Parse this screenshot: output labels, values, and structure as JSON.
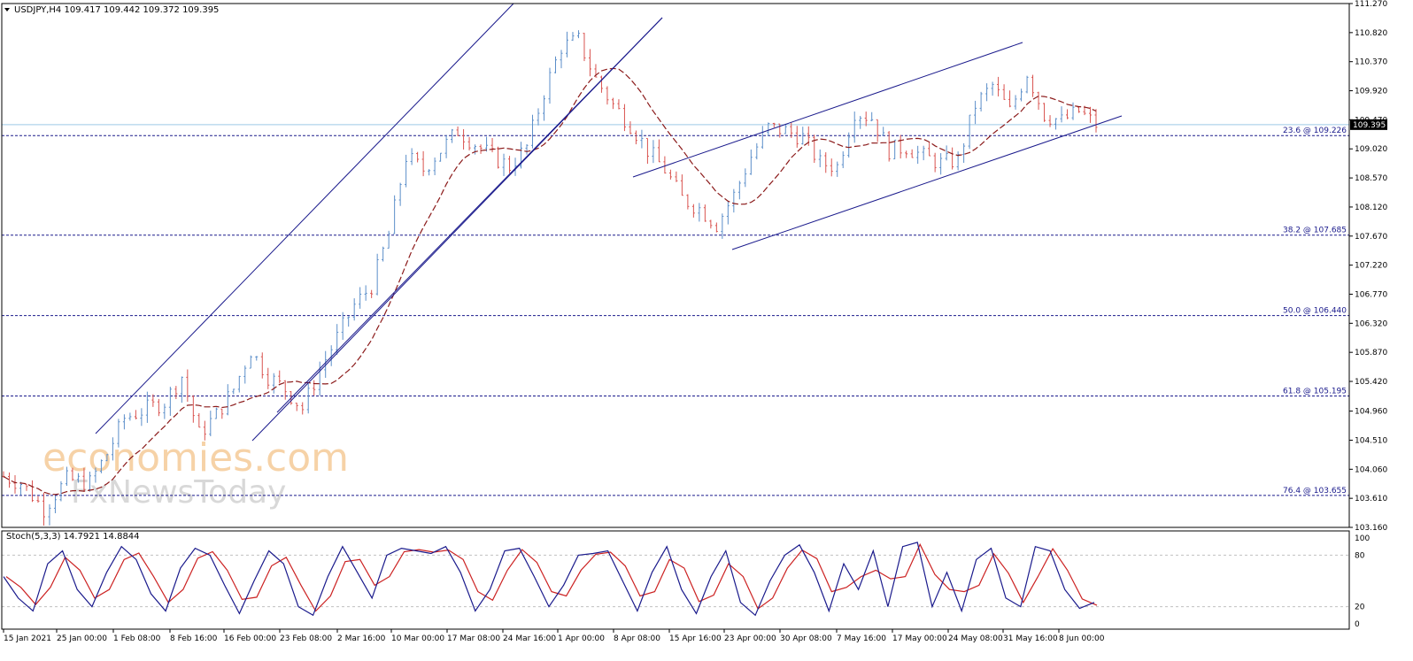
{
  "header": {
    "symbol_line": "USDJPY,H4  109.417 109.442 109.372 109.395",
    "stoch_line": "Stoch(5,3,3) 14.7921 14.8844"
  },
  "watermark": {
    "line1": "economies.com",
    "line2": "FxNewsToday"
  },
  "colors": {
    "bull": "#5b8ec9",
    "bear": "#d9534f",
    "ma": "#8b1a1a",
    "channel": "#1a1a8c",
    "fib": "#1a1a8c",
    "price_line": "#9ec9e8",
    "stoch_main": "#1a1a8c",
    "stoch_signal": "#cc2222",
    "grid": "#c0c0c0"
  },
  "chart_data": {
    "type": "candlestick",
    "symbol": "USDJPY",
    "timeframe": "H4",
    "ohlc": {
      "open": 109.417,
      "high": 109.442,
      "low": 109.372,
      "close": 109.395
    },
    "current_price": 109.395,
    "ylim": [
      103.16,
      111.27
    ],
    "y_ticks": [
      "111.270",
      "110.820",
      "110.370",
      "109.920",
      "109.470",
      "109.020",
      "108.570",
      "108.120",
      "107.670",
      "107.220",
      "106.770",
      "106.320",
      "105.870",
      "105.420",
      "104.960",
      "104.510",
      "104.060",
      "103.610",
      "103.160"
    ],
    "x_ticks": [
      "15 Jan 2021",
      "25 Jan 00:00",
      "1 Feb 08:00",
      "8 Feb 16:00",
      "16 Feb 00:00",
      "23 Feb 08:00",
      "2 Mar 16:00",
      "10 Mar 00:00",
      "17 Mar 08:00",
      "24 Mar 16:00",
      "1 Apr 00:00",
      "8 Apr 08:00",
      "15 Apr 16:00",
      "23 Apr 00:00",
      "30 Apr 08:00",
      "7 May 16:00",
      "17 May 00:00",
      "24 May 08:00",
      "31 May 16:00",
      "8 Jun 00:00"
    ],
    "fibonacci": [
      {
        "label": "23.6 @ 109.226",
        "value": 109.226
      },
      {
        "label": "38.2 @ 107.685",
        "value": 107.685
      },
      {
        "label": "50.0 @ 106.440",
        "value": 106.44
      },
      {
        "label": "61.8 @ 105.195",
        "value": 105.195
      },
      {
        "label": "76.4 @ 103.655",
        "value": 103.655
      }
    ],
    "price_path": [
      [
        0,
        103.95
      ],
      [
        3,
        103.85
      ],
      [
        7,
        103.45
      ],
      [
        11,
        103.9
      ],
      [
        15,
        103.85
      ],
      [
        18,
        104.3
      ],
      [
        21,
        104.85
      ],
      [
        25,
        105.0
      ],
      [
        28,
        105.1
      ],
      [
        31,
        105.5
      ],
      [
        34,
        104.6
      ],
      [
        37,
        104.9
      ],
      [
        40,
        105.3
      ],
      [
        43,
        105.9
      ],
      [
        46,
        105.5
      ],
      [
        49,
        105.3
      ],
      [
        52,
        105.0
      ],
      [
        55,
        105.6
      ],
      [
        58,
        106.1
      ],
      [
        61,
        106.6
      ],
      [
        64,
        106.9
      ],
      [
        67,
        107.7
      ],
      [
        70,
        108.9
      ],
      [
        73,
        108.7
      ],
      [
        76,
        109.0
      ],
      [
        79,
        109.3
      ],
      [
        82,
        109.1
      ],
      [
        85,
        108.9
      ],
      [
        88,
        108.75
      ],
      [
        91,
        109.05
      ],
      [
        94,
        109.9
      ],
      [
        97,
        110.6
      ],
      [
        100,
        110.7
      ],
      [
        103,
        110.1
      ],
      [
        106,
        109.7
      ],
      [
        109,
        109.4
      ],
      [
        112,
        109.0
      ],
      [
        115,
        108.7
      ],
      [
        118,
        108.25
      ],
      [
        121,
        108.1
      ],
      [
        124,
        107.85
      ],
      [
        127,
        108.3
      ],
      [
        130,
        108.9
      ],
      [
        133,
        109.35
      ],
      [
        136,
        109.3
      ],
      [
        139,
        109.2
      ],
      [
        142,
        108.8
      ],
      [
        145,
        108.75
      ],
      [
        148,
        109.6
      ],
      [
        151,
        109.5
      ],
      [
        154,
        109.0
      ],
      [
        157,
        109.05
      ],
      [
        160,
        108.9
      ],
      [
        163,
        108.8
      ],
      [
        166,
        108.85
      ],
      [
        169,
        109.7
      ],
      [
        172,
        110.0
      ],
      [
        175,
        109.6
      ],
      [
        178,
        110.2
      ],
      [
        181,
        109.55
      ],
      [
        184,
        109.45
      ],
      [
        187,
        109.6
      ],
      [
        190,
        109.395
      ]
    ],
    "stoch_k": [
      55,
      30,
      15,
      70,
      85,
      40,
      20,
      60,
      90,
      75,
      35,
      15,
      65,
      88,
      80,
      45,
      12,
      50,
      85,
      70,
      20,
      10,
      55,
      90,
      60,
      30,
      80,
      88,
      85,
      82,
      90,
      60,
      15,
      40,
      85,
      88,
      55,
      20,
      45,
      80,
      82,
      85,
      50,
      15,
      60,
      90,
      40,
      12,
      55,
      85,
      25,
      10,
      50,
      80,
      92,
      60,
      15,
      70,
      40,
      85,
      20,
      90,
      95,
      20,
      60,
      15,
      75,
      88,
      30,
      20,
      90,
      85,
      40,
      18,
      25
    ],
    "stoch_levels": [
      100,
      80,
      20,
      0
    ]
  }
}
